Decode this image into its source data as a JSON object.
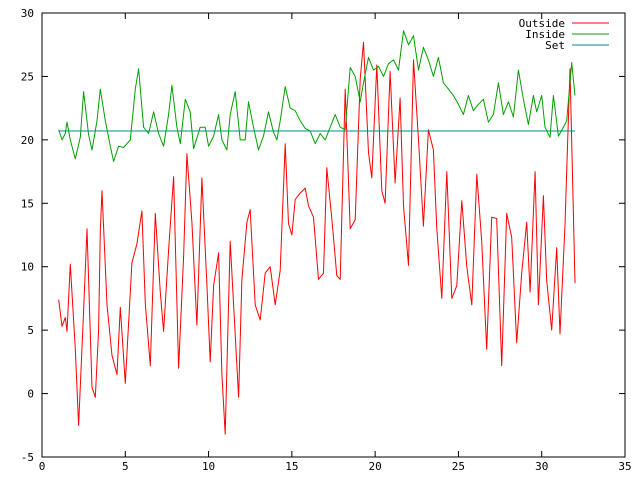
{
  "chart_data": {
    "type": "line",
    "title": "",
    "xlabel": "",
    "ylabel": "",
    "xlim": [
      0,
      35
    ],
    "ylim": [
      -5,
      30
    ],
    "xticks": [
      0,
      5,
      10,
      15,
      20,
      25,
      30,
      35
    ],
    "yticks": [
      -5,
      0,
      5,
      10,
      15,
      20,
      25,
      30
    ],
    "grid": false,
    "legend_position": "top-right",
    "series": [
      {
        "name": "Outside",
        "color": "#ff0000",
        "points": [
          [
            1.0,
            7.4
          ],
          [
            1.2,
            5.3
          ],
          [
            1.4,
            6.0
          ],
          [
            1.5,
            4.9
          ],
          [
            1.7,
            10.2
          ],
          [
            2.0,
            3.5
          ],
          [
            2.2,
            -2.5
          ],
          [
            2.5,
            6.5
          ],
          [
            2.7,
            13.0
          ],
          [
            3.0,
            0.5
          ],
          [
            3.2,
            -0.3
          ],
          [
            3.4,
            5.0
          ],
          [
            3.5,
            12.8
          ],
          [
            3.6,
            16.0
          ],
          [
            3.9,
            7.0
          ],
          [
            4.2,
            3.0
          ],
          [
            4.5,
            1.5
          ],
          [
            4.7,
            6.8
          ],
          [
            5.0,
            0.8
          ],
          [
            5.4,
            10.3
          ],
          [
            5.7,
            11.8
          ],
          [
            6.0,
            14.4
          ],
          [
            6.2,
            7.1
          ],
          [
            6.5,
            2.2
          ],
          [
            6.8,
            14.2
          ],
          [
            7.1,
            8.0
          ],
          [
            7.3,
            4.9
          ],
          [
            7.6,
            11.3
          ],
          [
            7.9,
            17.1
          ],
          [
            8.2,
            2.0
          ],
          [
            8.5,
            10.8
          ],
          [
            8.7,
            18.9
          ],
          [
            9.0,
            13.5
          ],
          [
            9.3,
            5.4
          ],
          [
            9.6,
            17.0
          ],
          [
            9.9,
            8.6
          ],
          [
            10.1,
            2.5
          ],
          [
            10.3,
            8.5
          ],
          [
            10.6,
            11.1
          ],
          [
            10.8,
            1.5
          ],
          [
            11.0,
            -3.2
          ],
          [
            11.3,
            12.0
          ],
          [
            11.5,
            7.0
          ],
          [
            11.8,
            -0.3
          ],
          [
            12.0,
            9.0
          ],
          [
            12.3,
            13.5
          ],
          [
            12.5,
            14.5
          ],
          [
            12.8,
            7.0
          ],
          [
            13.1,
            5.8
          ],
          [
            13.4,
            9.5
          ],
          [
            13.7,
            10.0
          ],
          [
            14.0,
            7.0
          ],
          [
            14.3,
            9.7
          ],
          [
            14.6,
            19.7
          ],
          [
            14.8,
            13.4
          ],
          [
            15.0,
            12.5
          ],
          [
            15.2,
            15.3
          ],
          [
            15.5,
            15.8
          ],
          [
            15.8,
            16.2
          ],
          [
            16.0,
            14.8
          ],
          [
            16.3,
            13.9
          ],
          [
            16.6,
            9.0
          ],
          [
            16.9,
            9.5
          ],
          [
            17.1,
            17.8
          ],
          [
            17.4,
            13.8
          ],
          [
            17.7,
            9.3
          ],
          [
            17.9,
            9.0
          ],
          [
            18.2,
            24.0
          ],
          [
            18.5,
            13.0
          ],
          [
            18.8,
            13.7
          ],
          [
            19.1,
            24.8
          ],
          [
            19.3,
            27.7
          ],
          [
            19.6,
            19.0
          ],
          [
            19.8,
            17.0
          ],
          [
            20.1,
            25.9
          ],
          [
            20.4,
            16.0
          ],
          [
            20.6,
            15.0
          ],
          [
            20.9,
            25.4
          ],
          [
            21.2,
            16.6
          ],
          [
            21.5,
            23.3
          ],
          [
            21.7,
            14.8
          ],
          [
            22.0,
            10.1
          ],
          [
            22.3,
            26.3
          ],
          [
            22.6,
            20.0
          ],
          [
            22.9,
            13.2
          ],
          [
            23.2,
            20.8
          ],
          [
            23.5,
            19.2
          ],
          [
            23.7,
            13.0
          ],
          [
            24.0,
            7.5
          ],
          [
            24.3,
            17.5
          ],
          [
            24.6,
            7.5
          ],
          [
            24.9,
            8.5
          ],
          [
            25.2,
            15.2
          ],
          [
            25.5,
            10.0
          ],
          [
            25.8,
            7.0
          ],
          [
            26.1,
            17.3
          ],
          [
            26.4,
            12.0
          ],
          [
            26.7,
            3.5
          ],
          [
            27.0,
            13.9
          ],
          [
            27.3,
            13.8
          ],
          [
            27.6,
            2.2
          ],
          [
            27.9,
            14.2
          ],
          [
            28.2,
            12.3
          ],
          [
            28.5,
            4.0
          ],
          [
            28.8,
            9.5
          ],
          [
            29.1,
            13.5
          ],
          [
            29.3,
            8.0
          ],
          [
            29.6,
            17.5
          ],
          [
            29.8,
            7.0
          ],
          [
            30.1,
            15.6
          ],
          [
            30.3,
            8.9
          ],
          [
            30.6,
            5.0
          ],
          [
            30.9,
            11.5
          ],
          [
            31.1,
            4.7
          ],
          [
            31.4,
            13.3
          ],
          [
            31.7,
            25.6
          ],
          [
            32.0,
            8.7
          ]
        ]
      },
      {
        "name": "Inside",
        "color": "#00a000",
        "points": [
          [
            1.0,
            20.8
          ],
          [
            1.2,
            20.0
          ],
          [
            1.4,
            20.5
          ],
          [
            1.5,
            21.4
          ],
          [
            1.7,
            20.0
          ],
          [
            2.0,
            18.5
          ],
          [
            2.3,
            20.2
          ],
          [
            2.5,
            23.8
          ],
          [
            2.8,
            20.4
          ],
          [
            3.0,
            19.2
          ],
          [
            3.3,
            21.5
          ],
          [
            3.5,
            24.0
          ],
          [
            3.8,
            21.5
          ],
          [
            4.1,
            19.5
          ],
          [
            4.3,
            18.3
          ],
          [
            4.6,
            19.5
          ],
          [
            4.9,
            19.4
          ],
          [
            5.3,
            20.0
          ],
          [
            5.6,
            24.0
          ],
          [
            5.8,
            25.6
          ],
          [
            6.1,
            21.0
          ],
          [
            6.4,
            20.5
          ],
          [
            6.7,
            22.2
          ],
          [
            7.0,
            20.5
          ],
          [
            7.3,
            19.5
          ],
          [
            7.6,
            22.0
          ],
          [
            7.8,
            24.3
          ],
          [
            8.1,
            21.0
          ],
          [
            8.3,
            19.7
          ],
          [
            8.6,
            23.2
          ],
          [
            8.9,
            22.2
          ],
          [
            9.1,
            19.3
          ],
          [
            9.5,
            21.0
          ],
          [
            9.8,
            21.0
          ],
          [
            10.0,
            19.5
          ],
          [
            10.3,
            20.3
          ],
          [
            10.6,
            22.0
          ],
          [
            10.8,
            20.0
          ],
          [
            11.1,
            19.2
          ],
          [
            11.3,
            22.0
          ],
          [
            11.6,
            23.8
          ],
          [
            11.9,
            20.0
          ],
          [
            12.2,
            20.0
          ],
          [
            12.4,
            23.0
          ],
          [
            12.7,
            21.0
          ],
          [
            13.0,
            19.2
          ],
          [
            13.3,
            20.3
          ],
          [
            13.6,
            22.2
          ],
          [
            13.9,
            20.6
          ],
          [
            14.1,
            20.0
          ],
          [
            14.3,
            21.5
          ],
          [
            14.6,
            24.2
          ],
          [
            14.9,
            22.5
          ],
          [
            15.2,
            22.3
          ],
          [
            15.5,
            21.5
          ],
          [
            15.8,
            20.9
          ],
          [
            16.1,
            20.7
          ],
          [
            16.4,
            19.7
          ],
          [
            16.7,
            20.5
          ],
          [
            17.0,
            20.0
          ],
          [
            17.3,
            21.0
          ],
          [
            17.6,
            22.0
          ],
          [
            17.9,
            21.0
          ],
          [
            18.2,
            20.8
          ],
          [
            18.5,
            25.7
          ],
          [
            18.8,
            25.0
          ],
          [
            19.1,
            23.0
          ],
          [
            19.3,
            24.5
          ],
          [
            19.6,
            26.5
          ],
          [
            19.9,
            25.5
          ],
          [
            20.2,
            25.8
          ],
          [
            20.5,
            25.0
          ],
          [
            20.8,
            26.0
          ],
          [
            21.1,
            26.3
          ],
          [
            21.4,
            25.5
          ],
          [
            21.7,
            28.6
          ],
          [
            22.0,
            27.5
          ],
          [
            22.3,
            28.2
          ],
          [
            22.6,
            25.5
          ],
          [
            22.9,
            27.3
          ],
          [
            23.2,
            26.3
          ],
          [
            23.5,
            25.0
          ],
          [
            23.8,
            26.5
          ],
          [
            24.1,
            24.5
          ],
          [
            24.4,
            24.0
          ],
          [
            24.7,
            23.5
          ],
          [
            25.0,
            22.8
          ],
          [
            25.3,
            22.0
          ],
          [
            25.6,
            23.5
          ],
          [
            25.9,
            22.3
          ],
          [
            26.2,
            22.8
          ],
          [
            26.5,
            23.2
          ],
          [
            26.8,
            21.4
          ],
          [
            27.1,
            22.0
          ],
          [
            27.4,
            24.5
          ],
          [
            27.7,
            22.0
          ],
          [
            28.0,
            23.0
          ],
          [
            28.3,
            21.8
          ],
          [
            28.6,
            25.5
          ],
          [
            28.9,
            23.2
          ],
          [
            29.2,
            21.2
          ],
          [
            29.5,
            23.5
          ],
          [
            29.7,
            22.2
          ],
          [
            30.0,
            23.5
          ],
          [
            30.2,
            21.0
          ],
          [
            30.5,
            20.2
          ],
          [
            30.7,
            23.5
          ],
          [
            31.0,
            20.3
          ],
          [
            31.3,
            21.0
          ],
          [
            31.5,
            21.5
          ],
          [
            31.8,
            26.1
          ],
          [
            32.0,
            23.5
          ]
        ]
      },
      {
        "name": "Set",
        "color": "#008b8b",
        "points": [
          [
            1.0,
            20.7
          ],
          [
            32.0,
            20.7
          ]
        ]
      }
    ]
  }
}
